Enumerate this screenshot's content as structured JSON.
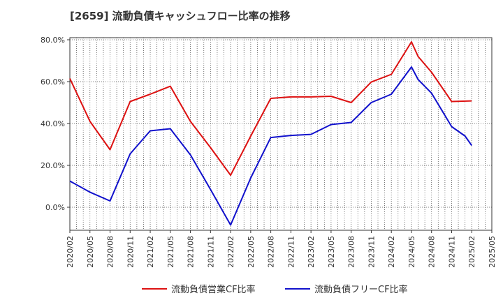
{
  "chart_data": {
    "type": "line",
    "title": "[2659]  流動負債キャッシュフロー比率の推移",
    "xlabel": "",
    "ylabel": "",
    "ylim": [
      -11,
      81
    ],
    "y_ticks": [
      0,
      20,
      40,
      60,
      80
    ],
    "y_tick_labels": [
      "0.0%",
      "20.0%",
      "40.0%",
      "60.0%",
      "80.0%"
    ],
    "x_ticks": [
      "2020/02",
      "2020/05",
      "2020/08",
      "2020/11",
      "2021/02",
      "2021/05",
      "2021/08",
      "2021/11",
      "2022/02",
      "2022/05",
      "2022/08",
      "2022/11",
      "2023/02",
      "2023/05",
      "2023/08",
      "2023/11",
      "2024/02",
      "2024/05",
      "2024/08",
      "2024/11",
      "2025/02",
      "2025/05"
    ],
    "grid": true,
    "legend_position": "bottom",
    "series": [
      {
        "name": "流動負債営業CF比率",
        "color": "#dd1111",
        "points": [
          [
            "2020/02",
            61.5
          ],
          [
            "2020/05",
            41.0
          ],
          [
            "2020/08",
            27.5
          ],
          [
            "2020/11",
            50.5
          ],
          [
            "2021/02",
            54.0
          ],
          [
            "2021/05",
            57.8
          ],
          [
            "2021/08",
            41.0
          ],
          [
            "2021/11",
            28.5
          ],
          [
            "2022/02",
            15.3
          ],
          [
            "2022/05",
            34.0
          ],
          [
            "2022/08",
            52.0
          ],
          [
            "2022/11",
            52.7
          ],
          [
            "2023/02",
            52.7
          ],
          [
            "2023/05",
            53.0
          ],
          [
            "2023/08",
            50.0
          ],
          [
            "2023/11",
            59.8
          ],
          [
            "2024/02",
            63.5
          ],
          [
            "2024/05",
            79.0
          ],
          [
            "2024/06",
            72.0
          ],
          [
            "2024/08",
            64.5
          ],
          [
            "2024/11",
            50.5
          ],
          [
            "2025/02",
            50.8
          ]
        ]
      },
      {
        "name": "流動負債フリーCF比率",
        "color": "#1111cc",
        "points": [
          [
            "2020/02",
            12.5
          ],
          [
            "2020/05",
            7.2
          ],
          [
            "2020/08",
            3.0
          ],
          [
            "2020/11",
            25.5
          ],
          [
            "2021/02",
            36.5
          ],
          [
            "2021/05",
            37.5
          ],
          [
            "2021/08",
            25.0
          ],
          [
            "2021/11",
            8.5
          ],
          [
            "2022/02",
            -8.5
          ],
          [
            "2022/05",
            14.0
          ],
          [
            "2022/08",
            33.3
          ],
          [
            "2022/11",
            34.3
          ],
          [
            "2023/02",
            34.8
          ],
          [
            "2023/05",
            39.5
          ],
          [
            "2023/08",
            40.5
          ],
          [
            "2023/11",
            50.0
          ],
          [
            "2024/02",
            54.0
          ],
          [
            "2024/05",
            67.0
          ],
          [
            "2024/06",
            61.0
          ],
          [
            "2024/08",
            54.5
          ],
          [
            "2024/11",
            38.5
          ],
          [
            "2025/01",
            34.0
          ],
          [
            "2025/02",
            29.5
          ]
        ]
      }
    ]
  }
}
